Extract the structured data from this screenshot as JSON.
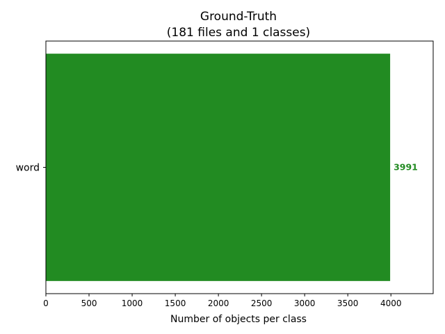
{
  "chart_data": {
    "type": "bar",
    "orientation": "horizontal",
    "title": "Ground-Truth",
    "subtitle": "(181 files and 1 classes)",
    "categories": [
      "word"
    ],
    "values": [
      3991
    ],
    "data_labels": [
      "3991"
    ],
    "xlabel": "Number of objects per class",
    "ylabel": "",
    "xlim": [
      0,
      4490
    ],
    "xticks": [
      0,
      500,
      1000,
      1500,
      2000,
      2500,
      3000,
      3500,
      4000
    ],
    "grid": false,
    "legend": "none",
    "bar_color": "#228b22",
    "label_color": "#228b22"
  }
}
